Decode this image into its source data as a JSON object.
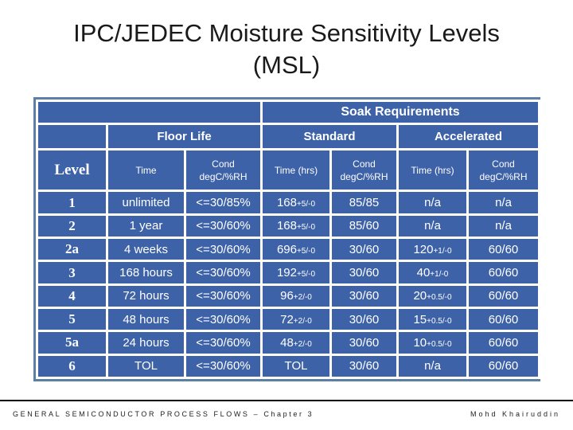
{
  "slide": {
    "title_line1": "IPC/JEDEC Moisture Sensitivity Levels",
    "title_line2": "(MSL)"
  },
  "table": {
    "header": {
      "soak": "Soak Requirements",
      "floor_life": "Floor Life",
      "standard": "Standard",
      "accelerated": "Accelerated",
      "level": "Level",
      "col_time": "Time",
      "col_cond_line1": "Cond",
      "col_cond_line2": "degC/%RH",
      "col_time_hrs": "Time (hrs)"
    },
    "rows": [
      {
        "level": "1",
        "fl_time": "unlimited",
        "fl_cond": "<=30/85%",
        "std_time": "168",
        "std_tol": "+5/-0",
        "std_cond": "85/85",
        "acc_time": "n/a",
        "acc_tol": "",
        "acc_cond": "n/a"
      },
      {
        "level": "2",
        "fl_time": "1 year",
        "fl_cond": "<=30/60%",
        "std_time": "168",
        "std_tol": "+5/-0",
        "std_cond": "85/60",
        "acc_time": "n/a",
        "acc_tol": "",
        "acc_cond": "n/a"
      },
      {
        "level": "2a",
        "fl_time": "4 weeks",
        "fl_cond": "<=30/60%",
        "std_time": "696",
        "std_tol": "+5/-0",
        "std_cond": "30/60",
        "acc_time": "120",
        "acc_tol": "+1/-0",
        "acc_cond": "60/60"
      },
      {
        "level": "3",
        "fl_time": "168 hours",
        "fl_cond": "<=30/60%",
        "std_time": "192",
        "std_tol": "+5/-0",
        "std_cond": "30/60",
        "acc_time": "40",
        "acc_tol": "+1/-0",
        "acc_cond": "60/60"
      },
      {
        "level": "4",
        "fl_time": "72 hours",
        "fl_cond": "<=30/60%",
        "std_time": "96",
        "std_tol": "+2/-0",
        "std_cond": "30/60",
        "acc_time": "20",
        "acc_tol": "+0.5/-0",
        "acc_cond": "60/60"
      },
      {
        "level": "5",
        "fl_time": "48 hours",
        "fl_cond": "<=30/60%",
        "std_time": "72",
        "std_tol": "+2/-0",
        "std_cond": "30/60",
        "acc_time": "15",
        "acc_tol": "+0.5/-0",
        "acc_cond": "60/60"
      },
      {
        "level": "5a",
        "fl_time": "24 hours",
        "fl_cond": "<=30/60%",
        "std_time": "48",
        "std_tol": "+2/-0",
        "std_cond": "30/60",
        "acc_time": "10",
        "acc_tol": "+0.5/-0",
        "acc_cond": "60/60"
      },
      {
        "level": "6",
        "fl_time": "TOL",
        "fl_cond": "<=30/60%",
        "std_time": "TOL",
        "std_tol": "",
        "std_cond": "30/60",
        "acc_time": "n/a",
        "acc_tol": "",
        "acc_cond": "60/60"
      }
    ]
  },
  "footer": {
    "left": "GENERAL SEMICONDUCTOR PROCESS FLOWS – Chapter 3",
    "right": "Mohd Khairuddin"
  },
  "colors": {
    "cell_bg": "#3d62a8",
    "border": "#ffffff"
  }
}
